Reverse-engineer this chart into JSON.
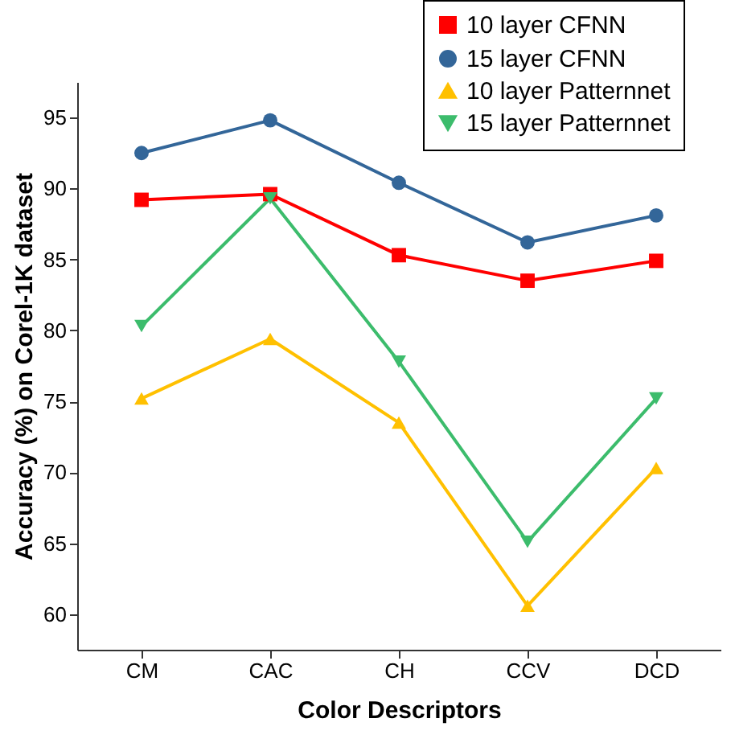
{
  "chart_data": {
    "type": "line",
    "xlabel": "Color Descriptors",
    "ylabel": "Accuracy (%) on Corel-1K dataset",
    "categories": [
      "CM",
      "CAC",
      "CH",
      "CCV",
      "DCD"
    ],
    "series": [
      {
        "name": "10 layer CFNN",
        "color": "#ff0000",
        "marker": "square",
        "values": [
          89.2,
          89.6,
          85.3,
          83.5,
          84.9
        ]
      },
      {
        "name": "15 layer CFNN",
        "color": "#336699",
        "marker": "circle",
        "values": [
          92.5,
          94.8,
          90.4,
          86.2,
          88.1
        ]
      },
      {
        "name": "10 layer Patternnet",
        "color": "#ffc000",
        "marker": "triangle",
        "values": [
          75.2,
          79.4,
          73.5,
          60.6,
          70.3
        ]
      },
      {
        "name": "15 layer Patternnet",
        "color": "#3cbc6c",
        "marker": "triangle-down",
        "values": [
          80.3,
          89.3,
          77.8,
          65.1,
          75.2
        ]
      }
    ],
    "ylim": [
      57.5,
      97.5
    ],
    "yticks": [
      60,
      65,
      70,
      75,
      80,
      85,
      90,
      95
    ],
    "legend": "top right",
    "grid": false,
    "line_style": "solid"
  }
}
